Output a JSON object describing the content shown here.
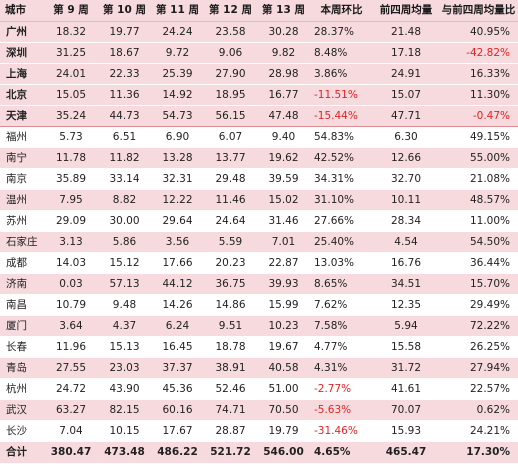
{
  "headers": [
    "城市",
    "第 9 周",
    "第 10 周",
    "第 11 周",
    "第 12 周",
    "第 13 周",
    "本周环比",
    "前四周均量",
    "与前四周均量比"
  ],
  "rows": [
    {
      "city": "广州",
      "w9": "18.32",
      "w10": "19.77",
      "w11": "24.24",
      "w12": "23.58",
      "w13": "30.28",
      "wow": "28.37%",
      "avg4": "21.48",
      "vs_avg4": "40.95%"
    },
    {
      "city": "深圳",
      "w9": "31.25",
      "w10": "18.67",
      "w11": "9.72",
      "w12": "9.06",
      "w13": "9.82",
      "wow": "8.48%",
      "avg4": "17.18",
      "vs_avg4": "-42.82%"
    },
    {
      "city": "上海",
      "w9": "24.01",
      "w10": "22.33",
      "w11": "25.39",
      "w12": "27.90",
      "w13": "28.98",
      "wow": "3.86%",
      "avg4": "24.91",
      "vs_avg4": "16.33%"
    },
    {
      "city": "北京",
      "w9": "15.05",
      "w10": "11.36",
      "w11": "14.92",
      "w12": "18.95",
      "w13": "16.77",
      "wow": "-11.51%",
      "avg4": "15.07",
      "vs_avg4": "11.30%"
    },
    {
      "city": "天津",
      "w9": "35.24",
      "w10": "44.73",
      "w11": "54.73",
      "w12": "56.15",
      "w13": "47.48",
      "wow": "-15.44%",
      "avg4": "47.71",
      "vs_avg4": "-0.47%"
    },
    {
      "city": "福州",
      "w9": "5.73",
      "w10": "6.51",
      "w11": "6.90",
      "w12": "6.07",
      "w13": "9.40",
      "wow": "54.83%",
      "avg4": "6.30",
      "vs_avg4": "49.15%"
    },
    {
      "city": "南宁",
      "w9": "11.78",
      "w10": "11.82",
      "w11": "13.28",
      "w12": "13.77",
      "w13": "19.62",
      "wow": "42.52%",
      "avg4": "12.66",
      "vs_avg4": "55.00%"
    },
    {
      "city": "南京",
      "w9": "35.89",
      "w10": "33.14",
      "w11": "32.31",
      "w12": "29.48",
      "w13": "39.59",
      "wow": "34.31%",
      "avg4": "32.70",
      "vs_avg4": "21.08%"
    },
    {
      "city": "温州",
      "w9": "7.95",
      "w10": "8.82",
      "w11": "12.22",
      "w12": "11.46",
      "w13": "15.02",
      "wow": "31.10%",
      "avg4": "10.11",
      "vs_avg4": "48.57%"
    },
    {
      "city": "苏州",
      "w9": "29.09",
      "w10": "30.00",
      "w11": "29.64",
      "w12": "24.64",
      "w13": "31.46",
      "wow": "27.66%",
      "avg4": "28.34",
      "vs_avg4": "11.00%"
    },
    {
      "city": "石家庄",
      "w9": "3.13",
      "w10": "5.86",
      "w11": "3.56",
      "w12": "5.59",
      "w13": "7.01",
      "wow": "25.40%",
      "avg4": "4.54",
      "vs_avg4": "54.50%"
    },
    {
      "city": "成都",
      "w9": "14.03",
      "w10": "15.12",
      "w11": "17.66",
      "w12": "20.23",
      "w13": "22.87",
      "wow": "13.03%",
      "avg4": "16.76",
      "vs_avg4": "36.44%"
    },
    {
      "city": "济南",
      "w9": "0.03",
      "w10": "57.13",
      "w11": "44.12",
      "w12": "36.75",
      "w13": "39.93",
      "wow": "8.65%",
      "avg4": "34.51",
      "vs_avg4": "15.70%"
    },
    {
      "city": "南昌",
      "w9": "10.79",
      "w10": "9.48",
      "w11": "14.26",
      "w12": "14.86",
      "w13": "15.99",
      "wow": "7.62%",
      "avg4": "12.35",
      "vs_avg4": "29.49%"
    },
    {
      "city": "厦门",
      "w9": "3.64",
      "w10": "4.37",
      "w11": "6.24",
      "w12": "9.51",
      "w13": "10.23",
      "wow": "7.58%",
      "avg4": "5.94",
      "vs_avg4": "72.22%"
    },
    {
      "city": "长春",
      "w9": "11.96",
      "w10": "15.13",
      "w11": "16.45",
      "w12": "18.78",
      "w13": "19.67",
      "wow": "4.77%",
      "avg4": "15.58",
      "vs_avg4": "26.25%"
    },
    {
      "city": "青岛",
      "w9": "27.55",
      "w10": "23.03",
      "w11": "37.37",
      "w12": "38.91",
      "w13": "40.58",
      "wow": "4.31%",
      "avg4": "31.72",
      "vs_avg4": "27.94%"
    },
    {
      "city": "杭州",
      "w9": "24.72",
      "w10": "43.90",
      "w11": "45.36",
      "w12": "52.46",
      "w13": "51.00",
      "wow": "-2.77%",
      "avg4": "41.61",
      "vs_avg4": "22.57%"
    },
    {
      "city": "武汉",
      "w9": "63.27",
      "w10": "82.15",
      "w11": "60.16",
      "w12": "74.71",
      "w13": "70.50",
      "wow": "-5.63%",
      "avg4": "70.07",
      "vs_avg4": "0.62%"
    },
    {
      "city": "长沙",
      "w9": "7.04",
      "w10": "10.15",
      "w11": "17.67",
      "w12": "28.87",
      "w13": "19.79",
      "wow": "-31.46%",
      "avg4": "15.93",
      "vs_avg4": "24.21%"
    }
  ],
  "total": {
    "city": "合计",
    "w9": "380.47",
    "w10": "473.48",
    "w11": "486.22",
    "w12": "521.72",
    "w13": "546.00",
    "wow": "4.65%",
    "avg4": "465.47",
    "vs_avg4": "17.30%"
  },
  "colors": {
    "row_tint": "#f6dadd",
    "negative": "#e02424",
    "separator": "#d98c94"
  }
}
